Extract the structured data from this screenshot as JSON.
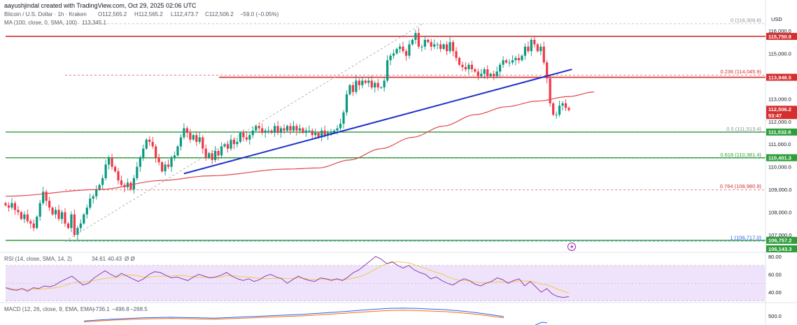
{
  "header": {
    "created_by": "aayushjindal created with TradingView.com, Oct 29, 2025 02:06 UTC",
    "symbol_line": "Bitcoin / U.S. Dollar · 1h · Kraken",
    "ohlc": {
      "o": "O112,565.2",
      "h": "H112,565.2",
      "l": "L112,473.7",
      "c": "C112,506.2",
      "chg": "−59.0 (−0.05%)"
    },
    "ma_line": "MA (100, close, 0, SMA, 100)",
    "ma_value": "113,345.1",
    "currency": "USD"
  },
  "colors": {
    "up": "#089981",
    "down": "#f23645",
    "price_bg": "#f23645",
    "ma": "#e0484f",
    "trend": "#1e2fc9",
    "resistance": "#d42e2e",
    "support": "#2e9e3b",
    "fib_gray": "#8c8f99",
    "fib_green": "#2e9e3b",
    "fib_red": "#d42e2e",
    "rsi_line": "#8e3fb0",
    "rsi_band": "#efe3fb",
    "rsi_ma": "#f2c94c",
    "macd_line": "#2962ff",
    "signal_line": "#ff6d00"
  },
  "chart_data": [
    {
      "type": "candlestick",
      "title": "Bitcoin / U.S. Dollar · 1h · Kraken",
      "x_note": "hourly candles, index order",
      "ylim": [
        106000,
        116400
      ],
      "yticks": [
        107000,
        108000,
        109000,
        110000,
        111000,
        112000,
        113000,
        115000,
        116000
      ],
      "ytick_labels": [
        "107,000.0",
        "108,000.0",
        "109,000.0",
        "110,000.0",
        "111,000.0",
        "112,000.0",
        "113,000.0",
        "115,000.0",
        "116,000.0"
      ],
      "closes": [
        108300,
        108200,
        108400,
        108100,
        108000,
        107700,
        107900,
        107600,
        107500,
        107300,
        107800,
        108400,
        108900,
        108500,
        108200,
        107900,
        108100,
        107700,
        108000,
        107500,
        107300,
        107900,
        107000,
        107300,
        107500,
        107900,
        108200,
        108600,
        108700,
        109000,
        109200,
        109500,
        110100,
        110400,
        110000,
        109800,
        109400,
        109200,
        109100,
        109300,
        109000,
        109500,
        110000,
        110400,
        110800,
        111200,
        111100,
        110900,
        110400,
        110200,
        109800,
        110100,
        110000,
        110400,
        110500,
        110900,
        111300,
        111700,
        111500,
        111200,
        111400,
        111100,
        111300,
        110800,
        110400,
        110600,
        110300,
        110700,
        110500,
        110900,
        111000,
        110800,
        111200,
        111000,
        111100,
        111500,
        111300,
        111200,
        111400,
        111600,
        111800,
        111700,
        111500,
        111600,
        111600,
        111500,
        111800,
        111500,
        111700,
        111600,
        111800,
        111600,
        111800,
        111600,
        111700,
        111500,
        111600,
        111600,
        111400,
        111500,
        111300,
        111600,
        111400,
        111500,
        111500,
        111600,
        111700,
        111900,
        112400,
        113200,
        113600,
        113300,
        113800,
        113600,
        113800,
        113700,
        113800,
        113500,
        113700,
        113500,
        113500,
        113800,
        114700,
        114900,
        115000,
        115200,
        115300,
        115100,
        114900,
        115400,
        115600,
        115900,
        115300,
        115300,
        115600,
        115500,
        115300,
        115400,
        115400,
        115200,
        115400,
        115100,
        115500,
        115100,
        114800,
        114500,
        114400,
        114300,
        114500,
        114300,
        114200,
        114000,
        114100,
        114300,
        114000,
        114100,
        114000,
        114200,
        114500,
        114700,
        114600,
        114600,
        114700,
        114800,
        114700,
        114900,
        115300,
        115100,
        115600,
        115400,
        115100,
        115300,
        114600,
        113900,
        112800,
        112300,
        112300,
        112700,
        112800,
        112600,
        112500
      ],
      "ma": {
        "name": "MA (100, close, 0, SMA, 100)",
        "values": [
          [
            0,
            108700
          ],
          [
            30,
            109000
          ],
          [
            50,
            109400
          ],
          [
            65,
            109600
          ],
          [
            90,
            109900
          ],
          [
            100,
            109950
          ],
          [
            110,
            110300
          ],
          [
            120,
            110800
          ],
          [
            130,
            111300
          ],
          [
            140,
            111800
          ],
          [
            150,
            112300
          ],
          [
            160,
            112650
          ],
          [
            170,
            112900
          ],
          [
            180,
            113100
          ],
          [
            188,
            113300
          ]
        ]
      },
      "trend_line": {
        "from": [
          57,
          109700
        ],
        "to": [
          181,
          114300
        ]
      },
      "resistance": [
        115750.9,
        113948.5
      ],
      "support": [
        111532.6,
        110401.3,
        106757.2
      ],
      "fib_levels": [
        {
          "label": "0 (116,309.8)",
          "value": 116309.8
        },
        {
          "label": "0.236 (114,045.9)",
          "value": 114045.9
        },
        {
          "label": "0.5 (111,513.4)",
          "value": 111513.4
        },
        {
          "label": "0.618 (110,381.4)",
          "value": 110381.4
        },
        {
          "label": "0.764 (108,980.9)",
          "value": 108980.9
        },
        {
          "label": "1 (106,717.0)",
          "value": 106717.0
        }
      ],
      "axis_tags": [
        {
          "label": "115,750.9",
          "value": 115750.9,
          "color": "red"
        },
        {
          "label": "113,948.5",
          "value": 113948.5,
          "color": "red"
        },
        {
          "label": "112,506.2",
          "value": 112506.2,
          "color": "red",
          "sub": "53:47"
        },
        {
          "label": "111,532.6",
          "value": 111532.6,
          "color": "green"
        },
        {
          "label": "110,401.3",
          "value": 110401.3,
          "color": "green"
        },
        {
          "label": "106,757.2",
          "value": 106757.2,
          "color": "green"
        },
        {
          "label": "106,143.3",
          "value": 106143.3,
          "color": "green"
        }
      ]
    },
    {
      "type": "line",
      "title": "RSI (14, close, SMA, 14, 2)",
      "values_shown": [
        "34.61",
        "40.43"
      ],
      "ylim": [
        30,
        90
      ],
      "yticks": [
        40,
        60,
        80
      ],
      "ytick_labels": [
        "40.00",
        "60.00",
        "80.00"
      ],
      "band": [
        30,
        70
      ],
      "series": [
        {
          "name": "RSI",
          "values": [
            45,
            43,
            42,
            44,
            41,
            45,
            44,
            47,
            46,
            48,
            52,
            55,
            58,
            53,
            48,
            50,
            56,
            60,
            64,
            60,
            57,
            61,
            58,
            55,
            52,
            55,
            60,
            63,
            62,
            59,
            56,
            57,
            55,
            53,
            57,
            60,
            58,
            56,
            57,
            59,
            62,
            58,
            55,
            53,
            55,
            52,
            54,
            58,
            60,
            57,
            55,
            50,
            54,
            58,
            55,
            53,
            52,
            56,
            55,
            53,
            55,
            53,
            57,
            62,
            65,
            70,
            75,
            80,
            77,
            72,
            74,
            70,
            67,
            70,
            65,
            62,
            60,
            55,
            57,
            53,
            50,
            48,
            52,
            55,
            53,
            49,
            47,
            50,
            52,
            56,
            54,
            50,
            53,
            55,
            47,
            52,
            46,
            40,
            44,
            38,
            35,
            34,
            35
          ]
        }
      ]
    },
    {
      "type": "line",
      "title": "MACD (12, 26, close, 9, EMA, EMA)",
      "values_shown": [
        "−736.1",
        "−496.8",
        "−268.5"
      ],
      "ylim": [
        -600,
        700
      ],
      "yticks": [
        500
      ],
      "ytick_labels": [
        "500.0"
      ]
    }
  ],
  "markers": {
    "lightning_icon": "lightning-icon"
  }
}
